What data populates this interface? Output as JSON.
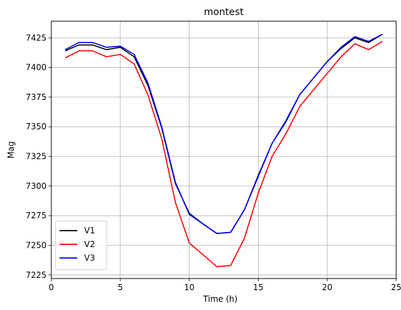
{
  "chart_data": {
    "type": "line",
    "title": "montest",
    "xlabel": "Time (h)",
    "ylabel": "Mag",
    "xlim": [
      0,
      25
    ],
    "ylim": [
      7222,
      7439
    ],
    "xticks": [
      0,
      5,
      10,
      15,
      20,
      25
    ],
    "yticks": [
      7225,
      7250,
      7275,
      7300,
      7325,
      7350,
      7375,
      7400,
      7425
    ],
    "grid": true,
    "legend_position": "lower-left",
    "x": [
      1,
      2,
      3,
      4,
      5,
      6,
      7,
      8,
      9,
      10,
      11,
      12,
      13,
      14,
      15,
      16,
      17,
      18,
      19,
      20,
      21,
      22,
      23,
      24
    ],
    "series": [
      {
        "name": "V1",
        "color": "#000000",
        "values": [
          7414,
          7419,
          7419,
          7415,
          7417,
          7409,
          7385,
          7349,
          7302,
          7277,
          7268,
          7260,
          7261,
          7280,
          7309,
          7336,
          7354,
          7377,
          7391,
          7405,
          7416,
          7425,
          7421,
          7428
        ]
      },
      {
        "name": "V2",
        "color": "#ff0000",
        "values": [
          7408,
          7414,
          7414,
          7409,
          7411,
          7403,
          7377,
          7340,
          7286,
          7252,
          7242,
          7232,
          7233,
          7256,
          7294,
          7325,
          7344,
          7367,
          7381,
          7395,
          7409,
          7420,
          7415,
          7422
        ]
      },
      {
        "name": "V3",
        "color": "#0000ff",
        "values": [
          7415,
          7421,
          7421,
          7417,
          7418,
          7411,
          7387,
          7350,
          7303,
          7276,
          7268,
          7260,
          7261,
          7280,
          7308,
          7336,
          7355,
          7377,
          7391,
          7405,
          7417,
          7426,
          7422,
          7428
        ]
      }
    ]
  }
}
